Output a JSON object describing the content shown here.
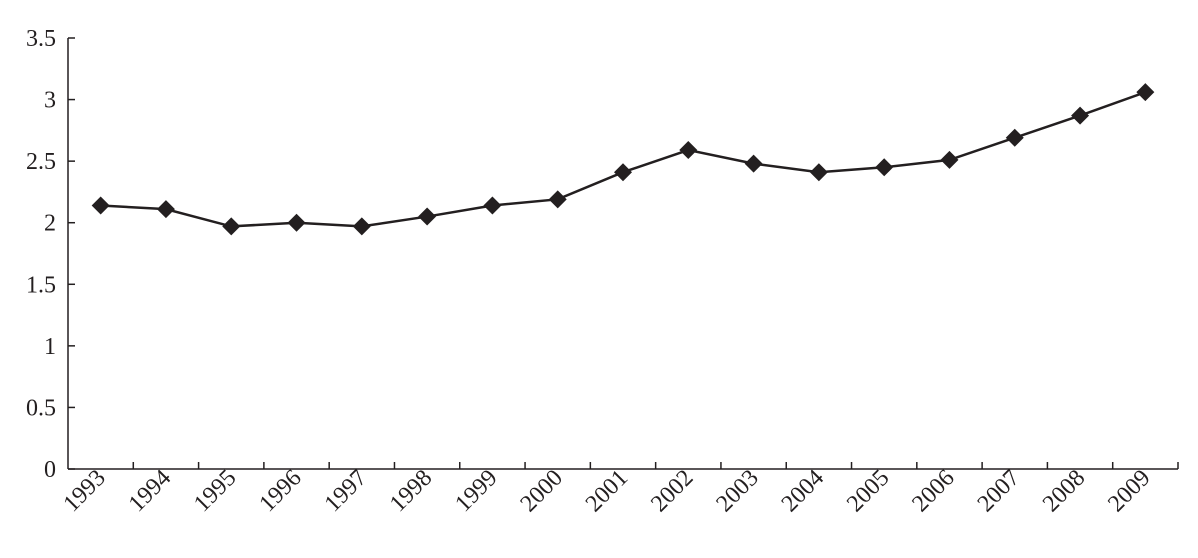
{
  "chart_data": {
    "type": "line",
    "categories": [
      "1993",
      "1994",
      "1995",
      "1996",
      "1997",
      "1998",
      "1999",
      "2000",
      "2001",
      "2002",
      "2003",
      "2004",
      "2005",
      "2006",
      "2007",
      "2008",
      "2009"
    ],
    "values": [
      2.14,
      2.11,
      1.97,
      2.0,
      1.97,
      2.05,
      2.14,
      2.19,
      2.41,
      2.59,
      2.48,
      2.41,
      2.45,
      2.51,
      2.69,
      2.87,
      3.06
    ],
    "color": "#231f20",
    "ylim": [
      0,
      3.5
    ],
    "yticks": [
      0,
      0.5,
      1,
      1.5,
      2,
      2.5,
      3,
      3.5
    ],
    "grid": false
  }
}
